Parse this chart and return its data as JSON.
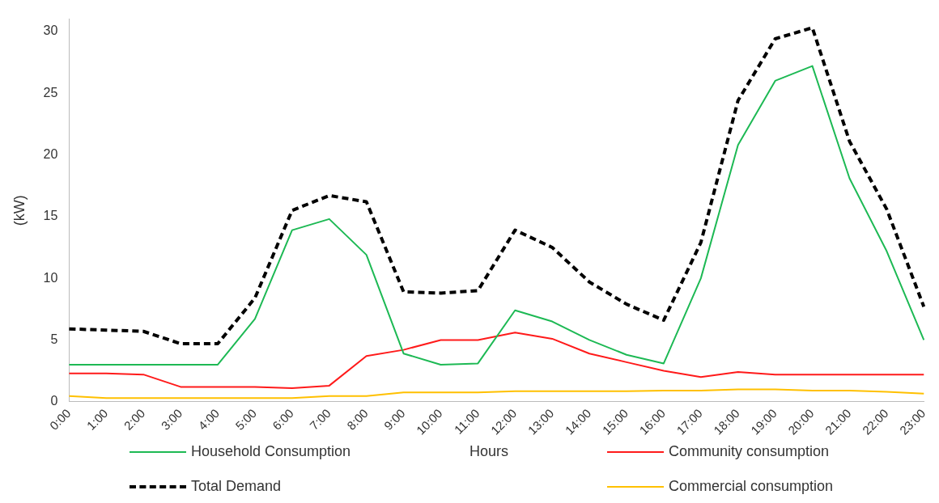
{
  "chart_data": {
    "type": "line",
    "xlabel": "Hours",
    "ylabel": "(kW)",
    "categories": [
      "0:00",
      "1:00",
      "2:00",
      "3:00",
      "4:00",
      "5:00",
      "6:00",
      "7:00",
      "8:00",
      "9:00",
      "10:00",
      "11:00",
      "12:00",
      "13:00",
      "14:00",
      "15:00",
      "16:00",
      "17:00",
      "18:00",
      "19:00",
      "20:00",
      "21:00",
      "22:00",
      "23:00"
    ],
    "series": [
      {
        "name": "Household Consumption",
        "color": "#1db954",
        "line_style": "solid",
        "values": [
          3.0,
          3.0,
          3.0,
          3.0,
          3.0,
          6.7,
          13.9,
          14.8,
          11.9,
          3.9,
          3.0,
          3.1,
          7.4,
          6.5,
          5.0,
          3.8,
          3.1,
          10.0,
          20.8,
          26.0,
          27.2,
          18.1,
          12.2,
          5.0
        ]
      },
      {
        "name": "Community consumption",
        "color": "#ff1a1a",
        "line_style": "solid",
        "values": [
          2.3,
          2.3,
          2.2,
          1.2,
          1.2,
          1.2,
          1.1,
          1.3,
          3.7,
          4.2,
          5.0,
          5.0,
          5.6,
          5.1,
          3.9,
          3.2,
          2.5,
          2.0,
          2.4,
          2.2,
          2.2,
          2.2,
          2.2,
          2.2
        ]
      },
      {
        "name": "Total Demand",
        "color": "#000000",
        "line_style": "dashed",
        "values": [
          5.9,
          5.8,
          5.7,
          4.7,
          4.7,
          8.4,
          15.5,
          16.7,
          16.2,
          8.9,
          8.8,
          9.0,
          13.9,
          12.5,
          9.7,
          7.9,
          6.6,
          12.9,
          24.4,
          29.4,
          30.3,
          21.1,
          15.6,
          7.7
        ]
      },
      {
        "name": "Commercial consumption",
        "color": "#ffc000",
        "line_style": "solid",
        "values": [
          0.45,
          0.3,
          0.3,
          0.3,
          0.3,
          0.3,
          0.3,
          0.45,
          0.45,
          0.75,
          0.75,
          0.75,
          0.85,
          0.85,
          0.85,
          0.85,
          0.9,
          0.9,
          1.0,
          1.0,
          0.9,
          0.9,
          0.8,
          0.65
        ]
      }
    ],
    "ylim": [
      0,
      31
    ],
    "yticks": [
      0,
      5,
      10,
      15,
      20,
      25,
      30
    ],
    "grid": false,
    "legend": "bottom",
    "marker": "none"
  }
}
